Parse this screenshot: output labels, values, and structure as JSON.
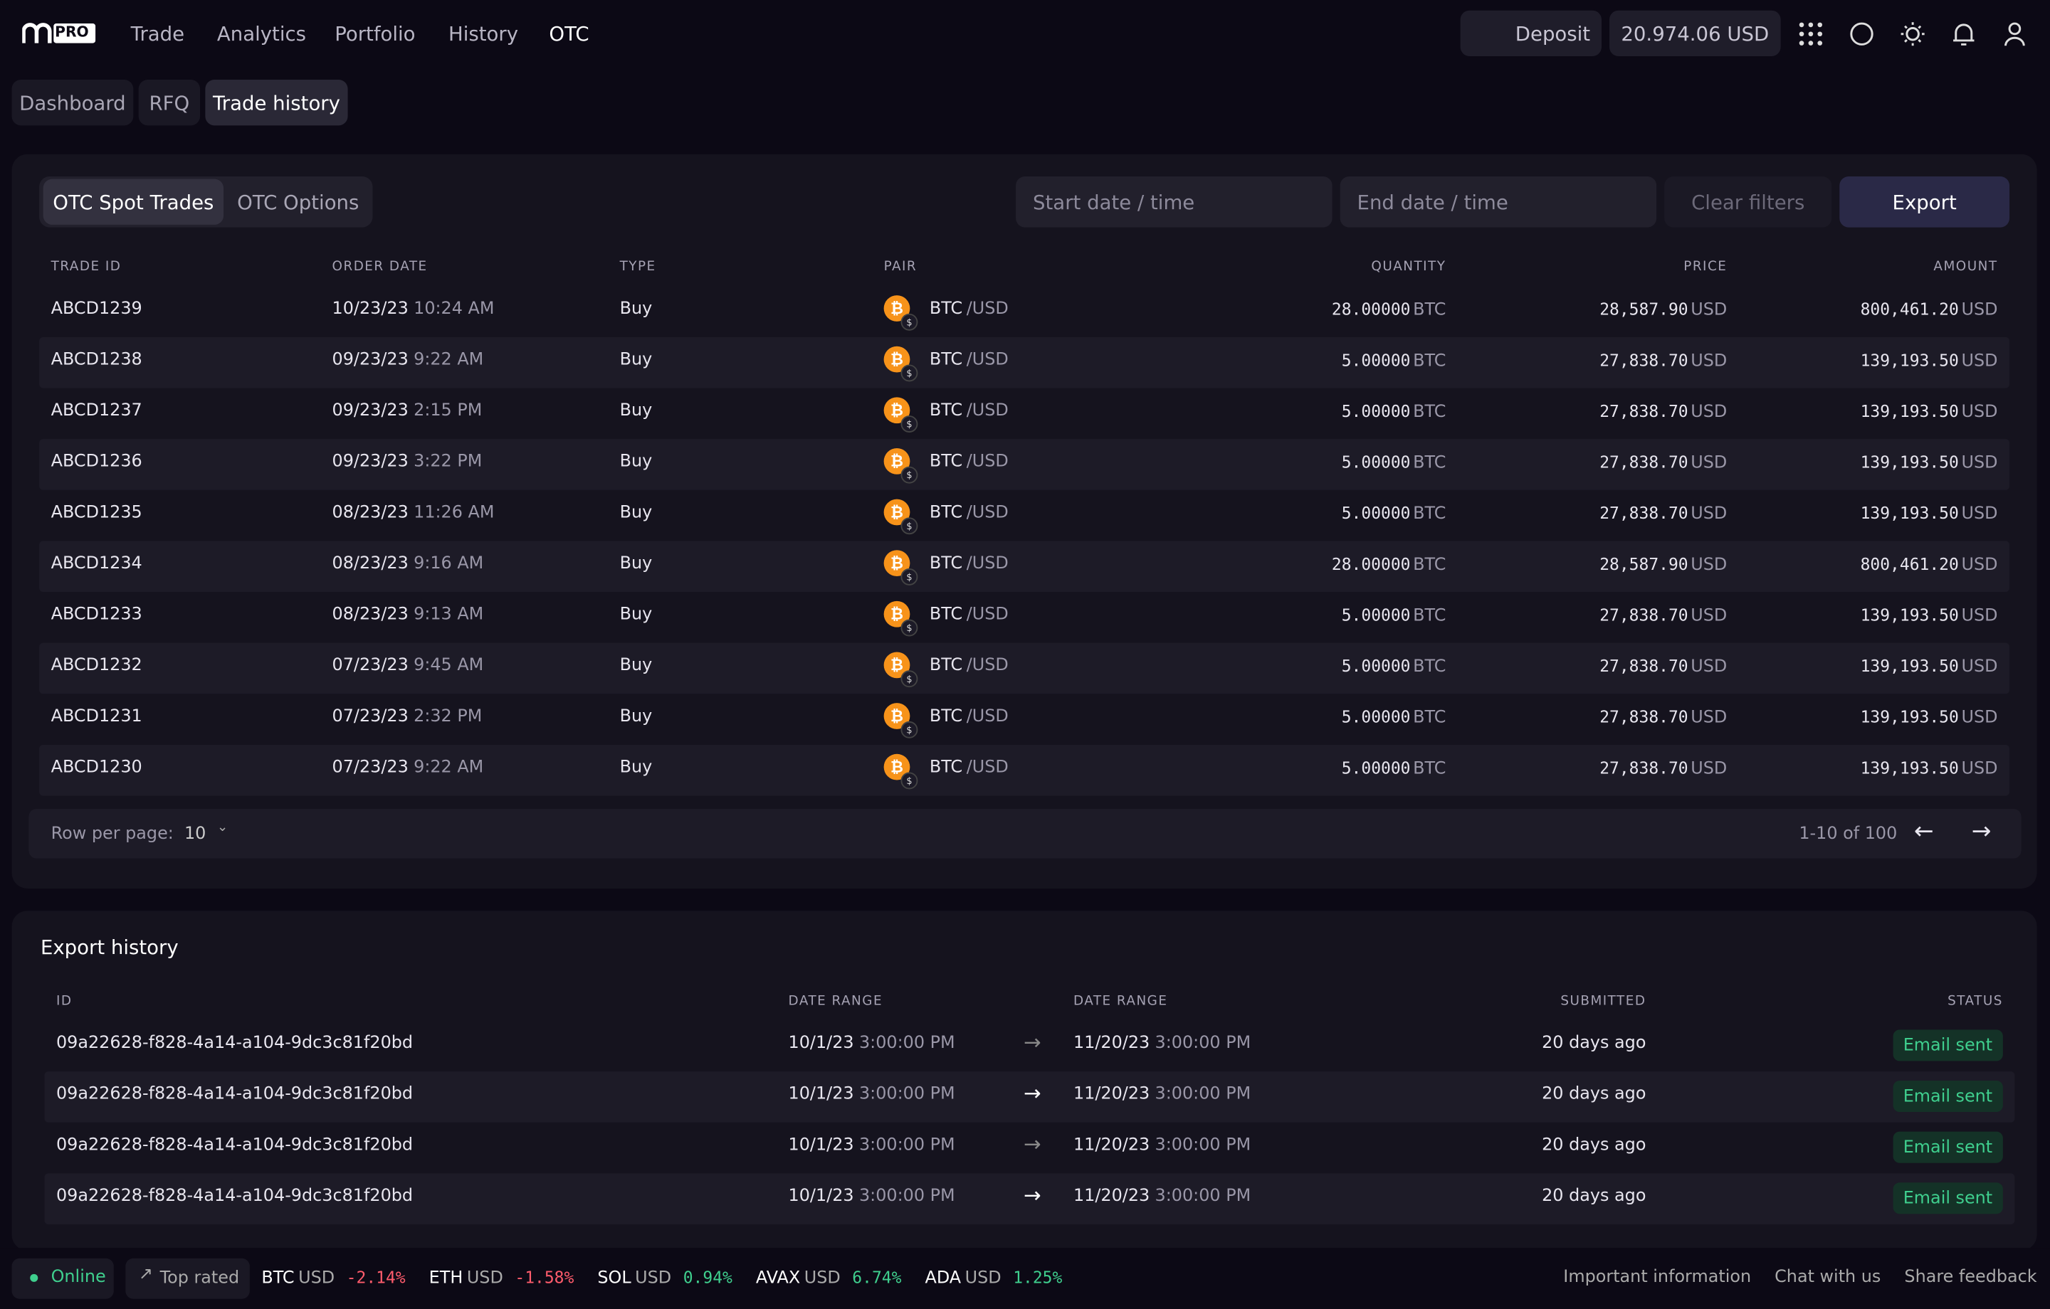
{
  "nav": {
    "logo": "PRO",
    "links": [
      "Trade",
      "Analytics",
      "Portfolio",
      "History",
      "OTC"
    ],
    "deposit": "Deposit",
    "balance": "20.974.06 USD"
  },
  "subnav": [
    "Dashboard",
    "RFQ",
    "Trade history"
  ],
  "trades": {
    "tabs": [
      "OTC Spot Trades",
      "OTC Options"
    ],
    "start_placeholder": "Start date / time",
    "end_placeholder": "End date / time",
    "clear": "Clear filters",
    "export": "Export",
    "columns": [
      "TRADE ID",
      "ORDER DATE",
      "TYPE",
      "PAIR",
      "QUANTITY",
      "PRICE",
      "AMOUNT"
    ],
    "rows": [
      [
        "ABCD1239",
        "10/23/23",
        "10:24 AM",
        "Buy",
        "BTC",
        "/USD",
        "28.00000",
        "BTC",
        "28,587.90",
        "USD",
        "800,461.20",
        "USD"
      ],
      [
        "ABCD1238",
        "09/23/23",
        "9:22 AM",
        "Buy",
        "BTC",
        "/USD",
        "5.00000",
        "BTC",
        "27,838.70",
        "USD",
        "139,193.50",
        "USD"
      ],
      [
        "ABCD1237",
        "09/23/23",
        "2:15 PM",
        "Buy",
        "BTC",
        "/USD",
        "5.00000",
        "BTC",
        "27,838.70",
        "USD",
        "139,193.50",
        "USD"
      ],
      [
        "ABCD1236",
        "09/23/23",
        "3:22 PM",
        "Buy",
        "BTC",
        "/USD",
        "5.00000",
        "BTC",
        "27,838.70",
        "USD",
        "139,193.50",
        "USD"
      ],
      [
        "ABCD1235",
        "08/23/23",
        "11:26 AM",
        "Buy",
        "BTC",
        "/USD",
        "5.00000",
        "BTC",
        "27,838.70",
        "USD",
        "139,193.50",
        "USD"
      ],
      [
        "ABCD1234",
        "08/23/23",
        "9:16 AM",
        "Buy",
        "BTC",
        "/USD",
        "28.00000",
        "BTC",
        "28,587.90",
        "USD",
        "800,461.20",
        "USD"
      ],
      [
        "ABCD1233",
        "08/23/23",
        "9:13 AM",
        "Buy",
        "BTC",
        "/USD",
        "5.00000",
        "BTC",
        "27,838.70",
        "USD",
        "139,193.50",
        "USD"
      ],
      [
        "ABCD1232",
        "07/23/23",
        "9:45 AM",
        "Buy",
        "BTC",
        "/USD",
        "5.00000",
        "BTC",
        "27,838.70",
        "USD",
        "139,193.50",
        "USD"
      ],
      [
        "ABCD1231",
        "07/23/23",
        "2:32 PM",
        "Buy",
        "BTC",
        "/USD",
        "5.00000",
        "BTC",
        "27,838.70",
        "USD",
        "139,193.50",
        "USD"
      ],
      [
        "ABCD1230",
        "07/23/23",
        "9:22 AM",
        "Buy",
        "BTC",
        "/USD",
        "5.00000",
        "BTC",
        "27,838.70",
        "USD",
        "139,193.50",
        "USD"
      ]
    ],
    "rows_label": "Row per page:",
    "rows_value": "10",
    "range": "1-10 of 100"
  },
  "export_history": {
    "title": "Export history",
    "columns": [
      "ID",
      "DATE RANGE",
      "DATE RANGE",
      "SUBMITTED",
      "STATUS"
    ],
    "rows": [
      [
        "09a22628-f828-4a14-a104-9dc3c81f20bd",
        "10/1/23",
        "3:00:00 PM",
        "11/20/23",
        "3:00:00 PM",
        "20 days ago",
        "Email sent"
      ],
      [
        "09a22628-f828-4a14-a104-9dc3c81f20bd",
        "10/1/23",
        "3:00:00 PM",
        "11/20/23",
        "3:00:00 PM",
        "20 days ago",
        "Email sent"
      ],
      [
        "09a22628-f828-4a14-a104-9dc3c81f20bd",
        "10/1/23",
        "3:00:00 PM",
        "11/20/23",
        "3:00:00 PM",
        "20 days ago",
        "Email sent"
      ],
      [
        "09a22628-f828-4a14-a104-9dc3c81f20bd",
        "10/1/23",
        "3:00:00 PM",
        "11/20/23",
        "3:00:00 PM",
        "20 days ago",
        "Email sent"
      ]
    ]
  },
  "footer": {
    "status": "Online",
    "top_rated": "Top rated",
    "tickers": [
      {
        "symbol": "BTC",
        "quote": "USD",
        "change": "-2.14%"
      },
      {
        "symbol": "ETH",
        "quote": "USD",
        "change": "-1.58%"
      },
      {
        "symbol": "SOL",
        "quote": "USD",
        "change": "0.94%"
      },
      {
        "symbol": "AVAX",
        "quote": "USD",
        "change": "6.74%"
      },
      {
        "symbol": "ADA",
        "quote": "USD",
        "change": "1.25%"
      }
    ],
    "links": [
      "Important information",
      "Chat with us",
      "Share feedback"
    ]
  }
}
